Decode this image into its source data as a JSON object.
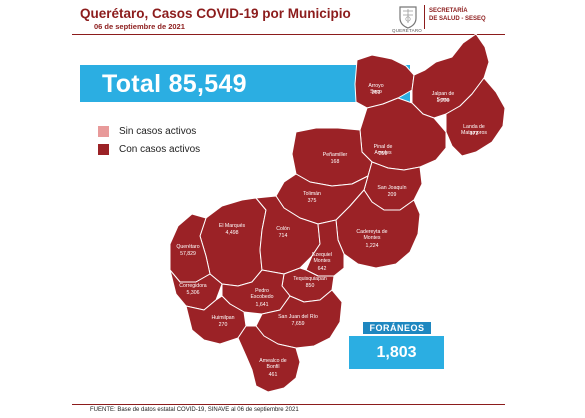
{
  "header": {
    "title": "Querétaro, Casos COVID-19 por Municipio",
    "date": "06 de septiembre de 2021",
    "seal_caption": "QUERÉTARO",
    "org_line1": "SECRETARÍA",
    "org_line2": "DE SALUD - SESEQ"
  },
  "total": {
    "text": "Total 85,549",
    "value": 85549
  },
  "legend": [
    {
      "label": "Sin casos activos",
      "color": "#e89a9a"
    },
    {
      "label": "Con casos activos",
      "color": "#9b2226"
    }
  ],
  "map": {
    "fill_color": "#9b2226",
    "border_color": "#ffffff",
    "municipalities": [
      {
        "name": "Arroyo Seco",
        "cases": "269"
      },
      {
        "name": "Jalpan de Serra",
        "cases": "1,200"
      },
      {
        "name": "Landa de Matamoros",
        "cases": "172"
      },
      {
        "name": "Pinal de Amoles",
        "cases": "259"
      },
      {
        "name": "Peñamiller",
        "cases": "168"
      },
      {
        "name": "San Joaquín",
        "cases": "209"
      },
      {
        "name": "Tolimán",
        "cases": "375"
      },
      {
        "name": "Cadereyta de Montes",
        "cases": "1,224"
      },
      {
        "name": "El Marqués",
        "cases": "4,498"
      },
      {
        "name": "Colón",
        "cases": "714"
      },
      {
        "name": "Ezequiel Montes",
        "cases": "642"
      },
      {
        "name": "Querétaro",
        "cases": "57,829"
      },
      {
        "name": "Corregidora",
        "cases": "5,306"
      },
      {
        "name": "Tequisquiapan",
        "cases": "850"
      },
      {
        "name": "Pedro Escobedo",
        "cases": "1,641"
      },
      {
        "name": "Huimilpan",
        "cases": "270"
      },
      {
        "name": "San Juan del Río",
        "cases": "7,659"
      },
      {
        "name": "Amealco de Bonfil",
        "cases": "461"
      }
    ]
  },
  "foraneos": {
    "label": "FORÁNEOS",
    "value": "1,803"
  },
  "source": "FUENTE: Base de datos estatal COVID-19, SINAVE al 06 de septiembre 2021"
}
